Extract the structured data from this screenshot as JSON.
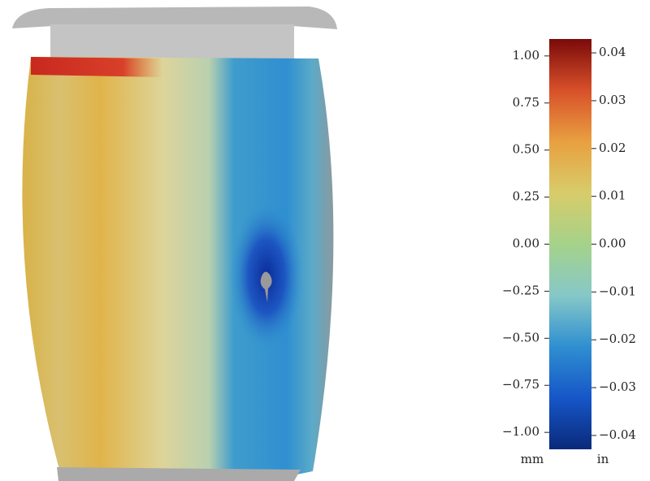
{
  "colorbar": {
    "left_label": "mm",
    "right_label": "in",
    "ylim": [
      -1.09,
      1.09
    ],
    "yticks": [
      {
        "value": -1.0,
        "label": "−1.00"
      },
      {
        "value": -0.75,
        "label": "−0.75"
      },
      {
        "value": -0.5,
        "label": "−0.50"
      },
      {
        "value": -0.25,
        "label": "−0.25"
      },
      {
        "value": 0,
        "label": "0.00"
      },
      {
        "value": 0.25,
        "label": "0.25"
      },
      {
        "value": 0.5,
        "label": "0.50"
      },
      {
        "value": 0.75,
        "label": "0.75"
      },
      {
        "value": 1.0,
        "label": "1.00"
      }
    ],
    "y2lim": [
      -0.0429,
      0.0429
    ],
    "y2ticks": [
      {
        "value": -0.04,
        "label": "−0.04"
      },
      {
        "value": -0.03,
        "label": "−0.03"
      },
      {
        "value": -0.02,
        "label": "−0.02"
      },
      {
        "value": -0.01,
        "label": "−0.01"
      },
      {
        "value": 0,
        "label": "0.00"
      },
      {
        "value": 0.01,
        "label": "0.01"
      },
      {
        "value": 0.02,
        "label": "0.02"
      },
      {
        "value": 0.03,
        "label": "0.03"
      },
      {
        "value": 0.04,
        "label": "0.04"
      }
    ],
    "colormap": [
      "#0a2a7a",
      "#1656c8",
      "#2f8fd0",
      "#86c8c8",
      "#a5d28a",
      "#d8cc6a",
      "#e8a040",
      "#d8502a",
      "#7a0a0a"
    ]
  }
}
